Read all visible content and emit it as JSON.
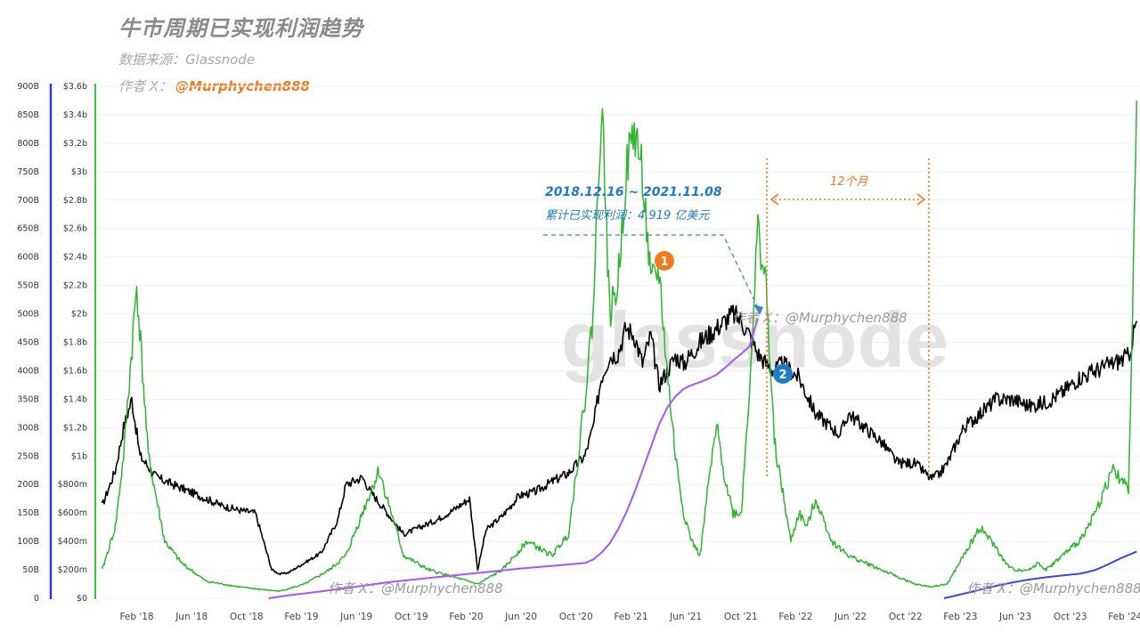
{
  "header": {
    "title": "牛市周期已实现利润趋势",
    "source": "数据来源：Glassnode",
    "author_prefix": "作者 X：",
    "author_handle": "@Murphychen888"
  },
  "watermark": {
    "logo": "glassnode",
    "text": "作者 X：@Murphychen888"
  },
  "annotations": {
    "range": "2018.12.16 ~ 2021.11.08",
    "cumulative": "累计已实现利润：4,919 亿美元",
    "duration": "12个月",
    "marker1": "1",
    "marker2": "2"
  },
  "colors": {
    "price": "#000000",
    "realized_profit": "#2db52d",
    "cumulative_2018": "#a855f7",
    "cumulative_2023": "#3b48e0",
    "axis_left": "#2b3bd6",
    "axis_usd": "#3cc33c",
    "annotation_blue": "#1d7ac4",
    "annotation_orange": "#f07a1c"
  },
  "chart_data": {
    "type": "line",
    "title": "牛市周期已实现利润趋势",
    "left_axis": {
      "ticks": [
        "0",
        "50B",
        "100B",
        "150B",
        "200B",
        "250B",
        "300B",
        "350B",
        "400B",
        "450B",
        "500B",
        "550B",
        "600B",
        "650B",
        "700B",
        "750B",
        "800B",
        "850B",
        "900B"
      ],
      "ylim": [
        0,
        900
      ]
    },
    "usd_axis": {
      "ticks": [
        "$0",
        "$200m",
        "$400m",
        "$600m",
        "$800m",
        "$1b",
        "$1.2b",
        "$1.4b",
        "$1.6b",
        "$1.8b",
        "$2b",
        "$2.2b",
        "$2.4b",
        "$2.6b",
        "$2.8b",
        "$3b",
        "$3.2b",
        "$3.4b",
        "$3.6b"
      ],
      "ylim": [
        0,
        3.6
      ]
    },
    "x_ticks": [
      "Feb '18",
      "Jun '18",
      "Oct '18",
      "Feb '19",
      "Jun '19",
      "Oct '19",
      "Feb '20",
      "Jun '20",
      "Oct '20",
      "Feb '21",
      "Jun '21",
      "Oct '21",
      "Feb '22",
      "Jun '22",
      "Oct '22",
      "Feb '23",
      "Jun '23",
      "Oct '23",
      "Feb '24"
    ],
    "series": [
      {
        "kind": "price",
        "x": [
          2017.87,
          2017.95,
          2018.0,
          2018.05,
          2018.1,
          2018.2,
          2018.3,
          2018.4,
          2018.5,
          2018.6,
          2018.7,
          2018.8,
          2018.85,
          2018.9,
          2018.95,
          2019.0,
          2019.1,
          2019.2,
          2019.3,
          2019.35,
          2019.45,
          2019.5,
          2019.6,
          2019.7,
          2019.8,
          2019.9,
          2020.0,
          2020.1,
          2020.15,
          2020.2,
          2020.3,
          2020.4,
          2020.5,
          2020.6,
          2020.7,
          2020.8,
          2020.85,
          2020.9,
          2020.95,
          2021.0,
          2021.05,
          2021.1,
          2021.15,
          2021.2,
          2021.25,
          2021.3,
          2021.35,
          2021.4,
          2021.5,
          2021.6,
          2021.7,
          2021.75,
          2021.8,
          2021.85,
          2021.9,
          2021.95,
          2022.0,
          2022.1,
          2022.2,
          2022.3,
          2022.35,
          2022.4,
          2022.5,
          2022.6,
          2022.7,
          2022.8,
          2022.85,
          2022.9,
          2022.95,
          2023.0,
          2023.1,
          2023.2,
          2023.3,
          2023.4,
          2023.5,
          2023.6,
          2023.7,
          2023.8,
          2023.9,
          2024.0,
          2024.1,
          2024.15
        ],
        "y": [
          0.65,
          0.9,
          1.2,
          1.4,
          1.0,
          0.85,
          0.8,
          0.75,
          0.7,
          0.65,
          0.62,
          0.6,
          0.4,
          0.2,
          0.17,
          0.18,
          0.25,
          0.32,
          0.55,
          0.8,
          0.85,
          0.75,
          0.6,
          0.45,
          0.5,
          0.55,
          0.62,
          0.7,
          0.2,
          0.48,
          0.58,
          0.72,
          0.75,
          0.82,
          0.88,
          1.0,
          1.2,
          1.55,
          1.7,
          1.72,
          1.9,
          1.85,
          1.65,
          1.85,
          1.5,
          1.6,
          1.7,
          1.65,
          1.8,
          1.9,
          2.0,
          1.95,
          1.85,
          1.72,
          1.65,
          1.6,
          1.65,
          1.55,
          1.3,
          1.2,
          1.15,
          1.3,
          1.2,
          1.1,
          0.95,
          0.95,
          0.9,
          0.84,
          0.87,
          0.95,
          1.2,
          1.3,
          1.4,
          1.4,
          1.35,
          1.38,
          1.45,
          1.55,
          1.6,
          1.65,
          1.7,
          1.95
        ]
      },
      {
        "kind": "realized_profit",
        "x": [
          2017.87,
          2017.95,
          2018.0,
          2018.04,
          2018.08,
          2018.15,
          2018.25,
          2018.35,
          2018.5,
          2018.7,
          2018.85,
          2018.95,
          2019.1,
          2019.25,
          2019.35,
          2019.45,
          2019.55,
          2019.7,
          2019.85,
          2020.0,
          2020.15,
          2020.3,
          2020.45,
          2020.6,
          2020.7,
          2020.75,
          2020.8,
          2020.85,
          2020.9,
          2020.92,
          2020.95,
          2021.0,
          2021.05,
          2021.1,
          2021.15,
          2021.2,
          2021.25,
          2021.3,
          2021.35,
          2021.4,
          2021.45,
          2021.5,
          2021.55,
          2021.6,
          2021.65,
          2021.7,
          2021.75,
          2021.8,
          2021.85,
          2021.9,
          2021.95,
          2022.05,
          2022.1,
          2022.15,
          2022.2,
          2022.3,
          2022.4,
          2022.5,
          2022.6,
          2022.7,
          2022.8,
          2022.9,
          2023.0,
          2023.1,
          2023.2,
          2023.3,
          2023.35,
          2023.4,
          2023.5,
          2023.55,
          2023.6,
          2023.7,
          2023.8,
          2023.9,
          2024.0,
          2024.05,
          2024.1,
          2024.15
        ],
        "y": [
          0.2,
          0.5,
          1.0,
          1.6,
          2.2,
          1.0,
          0.4,
          0.25,
          0.12,
          0.08,
          0.06,
          0.05,
          0.1,
          0.2,
          0.3,
          0.6,
          0.9,
          0.3,
          0.2,
          0.15,
          0.1,
          0.2,
          0.4,
          0.3,
          0.45,
          0.9,
          1.4,
          2.0,
          3.5,
          3.0,
          2.0,
          2.2,
          3.0,
          3.3,
          3.0,
          2.2,
          2.3,
          1.6,
          1.0,
          0.6,
          0.4,
          0.3,
          0.8,
          1.2,
          0.85,
          0.6,
          0.6,
          1.5,
          2.6,
          2.2,
          1.1,
          0.4,
          0.6,
          0.5,
          0.7,
          0.4,
          0.3,
          0.25,
          0.2,
          0.15,
          0.1,
          0.08,
          0.1,
          0.3,
          0.5,
          0.35,
          0.25,
          0.2,
          0.2,
          0.25,
          0.2,
          0.3,
          0.4,
          0.6,
          0.9,
          0.85,
          0.75,
          3.5
        ]
      },
      {
        "kind": "cumulative_2018",
        "x": [
          2018.88,
          2019.0,
          2019.2,
          2019.4,
          2019.6,
          2019.8,
          2020.0,
          2020.2,
          2020.4,
          2020.6,
          2020.8,
          2020.85,
          2020.9,
          2020.95,
          2021.0,
          2021.05,
          2021.1,
          2021.15,
          2021.2,
          2021.25,
          2021.3,
          2021.35,
          2021.4,
          2021.45,
          2021.5,
          2021.55,
          2021.6,
          2021.65,
          2021.7,
          2021.75,
          2021.8,
          2021.85
        ],
        "y": [
          0,
          5,
          12,
          20,
          28,
          34,
          40,
          46,
          52,
          57,
          62,
          68,
          80,
          96,
          120,
          150,
          185,
          225,
          265,
          305,
          335,
          355,
          368,
          375,
          380,
          386,
          393,
          405,
          418,
          430,
          443,
          492
        ]
      },
      {
        "kind": "cumulative_2023",
        "x": [
          2022.98,
          2023.1,
          2023.2,
          2023.3,
          2023.4,
          2023.5,
          2023.6,
          2023.7,
          2023.8,
          2023.85,
          2023.9,
          2023.95,
          2024.0,
          2024.05,
          2024.1,
          2024.15
        ],
        "y": [
          0,
          8,
          15,
          22,
          28,
          33,
          37,
          40,
          43,
          46,
          50,
          56,
          63,
          70,
          76,
          82
        ]
      }
    ]
  }
}
